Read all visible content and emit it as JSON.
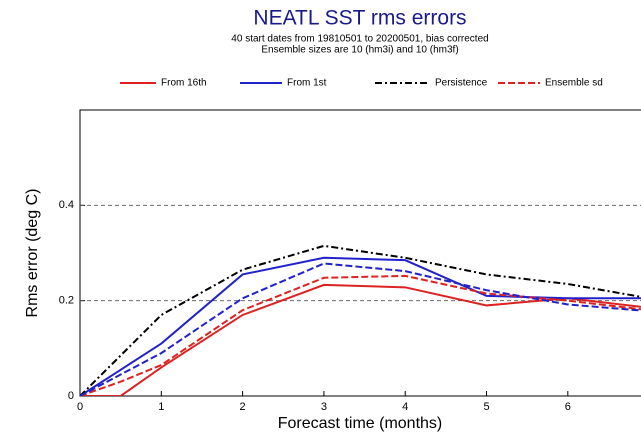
{
  "chart_data": {
    "type": "line",
    "title": "NEATL SST rms errors",
    "subtitle": [
      "40 start dates from 19810501 to 20200501, bias corrected",
      "Ensemble sizes are 10 (hm3i)  and 10 (hm3f)"
    ],
    "x_label": "Forecast time (months)",
    "y_label": "Rms error (deg C)",
    "x": [
      0,
      0.5,
      1,
      2,
      3,
      4,
      5,
      6,
      7
    ],
    "series": [
      {
        "name": "From 16th",
        "color": "#dd2222",
        "dash": "solid",
        "values": [
          0,
          0,
          0.06,
          0.17,
          0.233,
          0.228,
          0.19,
          0.205,
          0.185
        ]
      },
      {
        "name": "From 1st",
        "color": "#2222cc",
        "dash": "solid",
        "values": [
          0,
          0.055,
          0.11,
          0.255,
          0.29,
          0.285,
          0.21,
          0.205,
          0.205
        ]
      },
      {
        "name": "Persistence",
        "color": "#000000",
        "dash": "dashdot",
        "values": [
          0,
          0.085,
          0.17,
          0.265,
          0.315,
          0.29,
          0.255,
          0.235,
          0.205
        ]
      },
      {
        "name": "Ensemble sd",
        "color": "#dd2222",
        "dash": "dashed",
        "values": [
          0,
          0.03,
          0.065,
          0.18,
          0.248,
          0.252,
          0.215,
          0.2,
          0.18
        ]
      },
      {
        "color": "#2222cc",
        "dash": "dashed",
        "values": [
          0,
          0.045,
          0.09,
          0.205,
          0.278,
          0.262,
          0.222,
          0.192,
          0.178
        ]
      }
    ],
    "xlim": [
      0,
      6.9
    ],
    "ylim": [
      0,
      0.6
    ],
    "xticks": [
      0,
      1,
      2,
      3,
      4,
      5,
      6
    ],
    "yticks": [
      0,
      0.2,
      0.4
    ],
    "grid": true,
    "legend": "top"
  }
}
